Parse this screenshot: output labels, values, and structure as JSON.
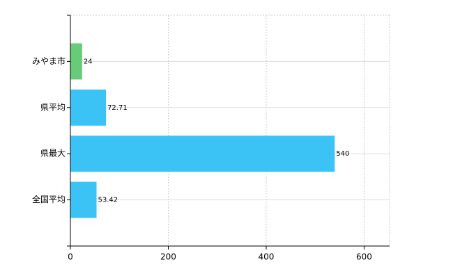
{
  "chart_data": {
    "type": "hbar",
    "categories": [
      "みやま市",
      "県平均",
      "県最大",
      "全国平均"
    ],
    "values": [
      24,
      72.71,
      540,
      53.42
    ],
    "colors": [
      "#66cc7a",
      "#3cc3f5",
      "#3cc3f5",
      "#3cc3f5"
    ],
    "xlim": [
      0,
      652
    ],
    "xticks": [
      0,
      200,
      400,
      600
    ],
    "grid": true
  }
}
